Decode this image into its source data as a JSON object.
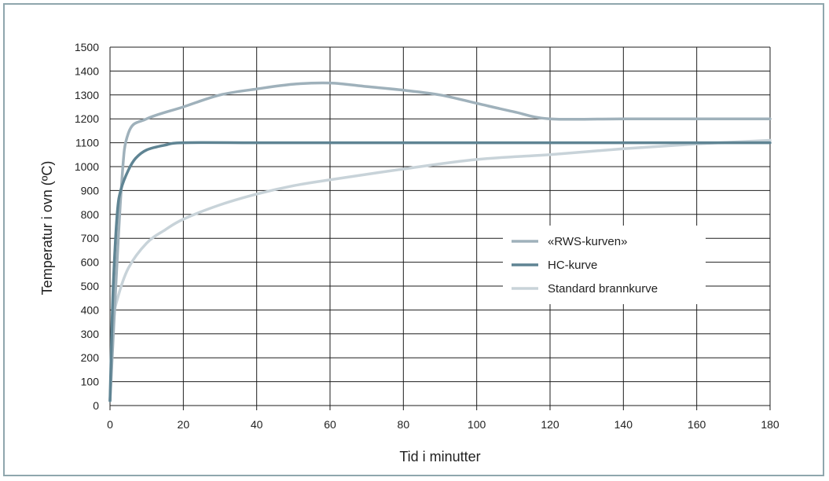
{
  "chart_data": {
    "type": "line",
    "title": "",
    "xlabel": "Tid i minutter",
    "ylabel": "Temperatur i ovn (ºC)",
    "xlim": [
      0,
      180
    ],
    "ylim": [
      0,
      1500
    ],
    "x_ticks": [
      "0",
      "20",
      "40",
      "60",
      "80",
      "100",
      "120",
      "140",
      "160",
      "180"
    ],
    "y_ticks": [
      "0",
      "100",
      "200",
      "300",
      "400",
      "500",
      "600",
      "700",
      "800",
      "900",
      "1000",
      "1100",
      "1200",
      "1300",
      "1400",
      "1500"
    ],
    "grid": true,
    "legend_position": "center-right",
    "series": [
      {
        "name": "«RWS-kurven»",
        "color": "#9fb1bb",
        "x": [
          0,
          3,
          5,
          10,
          20,
          30,
          40,
          50,
          60,
          70,
          80,
          90,
          100,
          110,
          120,
          140,
          160,
          180
        ],
        "y": [
          20,
          890,
          1140,
          1200,
          1250,
          1300,
          1325,
          1345,
          1350,
          1335,
          1320,
          1300,
          1265,
          1230,
          1200,
          1200,
          1200,
          1200
        ]
      },
      {
        "name": "HC-kurve",
        "color": "#5f8493",
        "x": [
          0,
          0.5,
          1,
          2,
          3,
          5,
          7,
          10,
          15,
          20,
          40,
          60,
          80,
          100,
          120,
          140,
          160,
          180
        ],
        "y": [
          20,
          320,
          545,
          810,
          905,
          985,
          1035,
          1070,
          1090,
          1100,
          1100,
          1100,
          1100,
          1100,
          1100,
          1100,
          1100,
          1100
        ]
      },
      {
        "name": "Standard brannkurve",
        "color": "#c8d3d9",
        "x": [
          0,
          1,
          2,
          5,
          10,
          15,
          20,
          30,
          40,
          50,
          60,
          80,
          100,
          120,
          140,
          160,
          180
        ],
        "y": [
          20,
          350,
          445,
          575,
          680,
          735,
          780,
          840,
          885,
          920,
          945,
          990,
          1030,
          1050,
          1075,
          1095,
          1110
        ]
      }
    ]
  }
}
